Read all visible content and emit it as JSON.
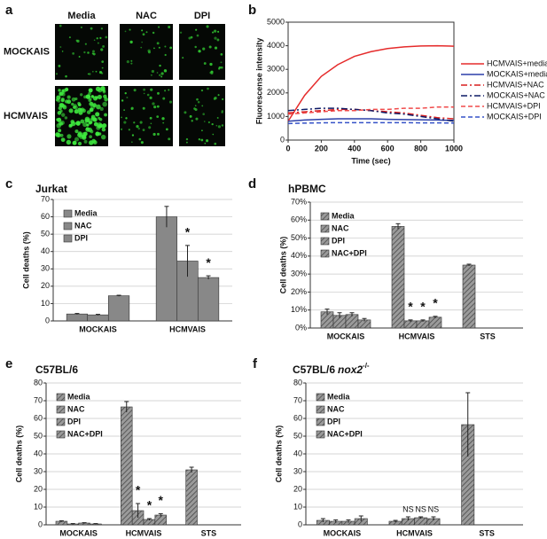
{
  "panel_a": {
    "label": "a",
    "columns": [
      "Media",
      "NAC",
      "DPI"
    ],
    "rows": [
      "MOCKAIS",
      "HCMVAIS"
    ]
  },
  "chart_data": [
    {
      "type": "line",
      "panel": "b",
      "x_label": "Time (sec)",
      "y_label": "Fluorescense intensity",
      "x": [
        0,
        100,
        200,
        300,
        400,
        500,
        600,
        700,
        800,
        900,
        1000
      ],
      "xlim": [
        0,
        1000
      ],
      "xticks": [
        0,
        200,
        400,
        600,
        800,
        1000
      ],
      "ylim": [
        0,
        5000
      ],
      "yticks": [
        0,
        1000,
        2000,
        3000,
        4000,
        5000
      ],
      "grid": false,
      "legend": "right",
      "series": [
        {
          "name": "HCMVAIS+media",
          "color": "#e52b2b",
          "linestyle": "solid",
          "values": [
            800,
            1900,
            2700,
            3200,
            3550,
            3750,
            3880,
            3950,
            3990,
            4000,
            3980
          ]
        },
        {
          "name": "MOCKAIS+media",
          "color": "#2b3fa8",
          "linestyle": "solid",
          "values": [
            800,
            850,
            880,
            900,
            900,
            900,
            880,
            870,
            860,
            850,
            830
          ]
        },
        {
          "name": "HCMVAIS+NAC",
          "color": "#d81f1f",
          "linestyle": "dashdot",
          "values": [
            1150,
            1200,
            1250,
            1300,
            1300,
            1250,
            1200,
            1150,
            1050,
            950,
            900
          ]
        },
        {
          "name": "MOCKAIS+NAC",
          "color": "#0d1a66",
          "linestyle": "dashdot",
          "values": [
            1250,
            1300,
            1350,
            1350,
            1300,
            1250,
            1150,
            1100,
            1000,
            900,
            800
          ]
        },
        {
          "name": "HCMVAIS+DPI",
          "color": "#f04a4a",
          "linestyle": "dashed",
          "values": [
            1100,
            1150,
            1200,
            1250,
            1250,
            1300,
            1300,
            1350,
            1350,
            1400,
            1400
          ]
        },
        {
          "name": "MOCKAIS+DPI",
          "color": "#3552c8",
          "linestyle": "dashed",
          "values": [
            700,
            720,
            730,
            740,
            740,
            740,
            740,
            740,
            730,
            730,
            720
          ]
        }
      ]
    },
    {
      "type": "bar",
      "panel": "c",
      "title": "Jurkat",
      "y_label": "Cell deaths (%)",
      "fill": "solid",
      "categories": [
        "MOCKAIS",
        "HCMVAIS"
      ],
      "ylim": [
        0,
        70
      ],
      "yticks": [
        0,
        10,
        20,
        30,
        40,
        50,
        60,
        70
      ],
      "grid": true,
      "legend": "upper left",
      "series": [
        {
          "name": "Media",
          "color": "#888888",
          "values": [
            4,
            60
          ],
          "errors": [
            0.3,
            6
          ],
          "annotations": [
            null,
            null
          ]
        },
        {
          "name": "NAC",
          "color": "#888888",
          "values": [
            3.5,
            34.5
          ],
          "errors": [
            0.3,
            9
          ],
          "annotations": [
            null,
            "*"
          ]
        },
        {
          "name": "DPI",
          "color": "#888888",
          "values": [
            14.5,
            25
          ],
          "errors": [
            0.3,
            1
          ],
          "annotations": [
            null,
            "*"
          ]
        }
      ]
    },
    {
      "type": "bar",
      "panel": "d",
      "title": "hPBMC",
      "y_label": "Cell deaths (%)",
      "fill": "hatch",
      "categories": [
        "MOCKAIS",
        "HCMVAIS",
        "STS"
      ],
      "ylim": [
        0,
        70
      ],
      "yticks": [
        {
          "value": 0,
          "label": "0%"
        },
        {
          "value": 10,
          "label": "10%"
        },
        {
          "value": 20,
          "label": "20%"
        },
        {
          "value": 30,
          "label": "30%"
        },
        {
          "value": 40,
          "label": "40%"
        },
        {
          "value": 50,
          "label": "50%"
        },
        {
          "value": 60,
          "label": "60%"
        },
        {
          "value": 70,
          "label": "70%"
        }
      ],
      "grid": true,
      "legend": "upper left",
      "series": [
        {
          "name": "Media",
          "color": "#888888",
          "values": [
            9,
            56.5,
            35
          ],
          "errors": [
            1.5,
            1.5,
            0.5
          ],
          "annotations": [
            null,
            null,
            null
          ]
        },
        {
          "name": "NAC",
          "color": "#888888",
          "values": [
            7,
            4,
            null
          ],
          "errors": [
            1.5,
            0.5,
            null
          ],
          "annotations": [
            null,
            "*",
            null
          ]
        },
        {
          "name": "DPI",
          "color": "#888888",
          "values": [
            7.5,
            4,
            null
          ],
          "errors": [
            1,
            0.5,
            null
          ],
          "annotations": [
            null,
            "*",
            null
          ]
        },
        {
          "name": "NAC+DPI",
          "color": "#888888",
          "values": [
            4.5,
            6,
            null
          ],
          "errors": [
            0.8,
            0.5,
            null
          ],
          "annotations": [
            null,
            "*",
            null
          ]
        }
      ]
    },
    {
      "type": "bar",
      "panel": "e",
      "title": "C57BL/6",
      "y_label": "Cell deaths (%)",
      "fill": "hatch",
      "categories": [
        "MOCKAIS",
        "HCMVAIS",
        "STS"
      ],
      "ylim": [
        0,
        80
      ],
      "yticks": [
        0,
        10,
        20,
        30,
        40,
        50,
        60,
        70,
        80
      ],
      "grid": true,
      "legend": "upper left",
      "series": [
        {
          "name": "Media",
          "color": "#888888",
          "values": [
            2,
            66.5,
            31
          ],
          "errors": [
            0.3,
            3,
            1.5
          ],
          "annotations": [
            null,
            null,
            null
          ]
        },
        {
          "name": "NAC",
          "color": "#888888",
          "values": [
            0.5,
            8,
            null
          ],
          "errors": [
            0.2,
            4,
            null
          ],
          "annotations": [
            null,
            "*",
            null
          ]
        },
        {
          "name": "DPI",
          "color": "#888888",
          "values": [
            1,
            3,
            null
          ],
          "errors": [
            0.2,
            0.5,
            null
          ],
          "annotations": [
            null,
            "*",
            null
          ]
        },
        {
          "name": "NAC+DPI",
          "color": "#888888",
          "values": [
            0.5,
            5.5,
            null
          ],
          "errors": [
            0.2,
            0.8,
            null
          ],
          "annotations": [
            null,
            "*",
            null
          ]
        }
      ]
    },
    {
      "type": "bar",
      "panel": "f",
      "title": "C57BL/6",
      "title_italic": "nox2",
      "title_superscript": "-/-",
      "y_label": "Cell deaths (%)",
      "fill": "hatch",
      "categories": [
        "MOCKAIS",
        "HCMVAIS",
        "STS"
      ],
      "ylim": [
        0,
        80
      ],
      "yticks": [
        0,
        10,
        20,
        30,
        40,
        50,
        60,
        70,
        80
      ],
      "grid": true,
      "legend": "upper left",
      "series": [
        {
          "name": "Media",
          "color": "#888888",
          "values": [
            2.5,
            2,
            56.5
          ],
          "errors": [
            1,
            0.5,
            18
          ],
          "annotations": [
            null,
            null,
            null
          ]
        },
        {
          "name": "NAC",
          "color": "#888888",
          "values": [
            2,
            3.5,
            null
          ],
          "errors": [
            0.8,
            1,
            null
          ],
          "annotations": [
            null,
            "NS",
            null
          ]
        },
        {
          "name": "DPI",
          "color": "#888888",
          "values": [
            2,
            4,
            null
          ],
          "errors": [
            0.8,
            0.5,
            null
          ],
          "annotations": [
            null,
            "NS",
            null
          ]
        },
        {
          "name": "NAC+DPI",
          "color": "#888888",
          "values": [
            3.5,
            3.5,
            null
          ],
          "errors": [
            1.5,
            1,
            null
          ],
          "annotations": [
            null,
            "NS",
            null
          ]
        }
      ]
    }
  ]
}
